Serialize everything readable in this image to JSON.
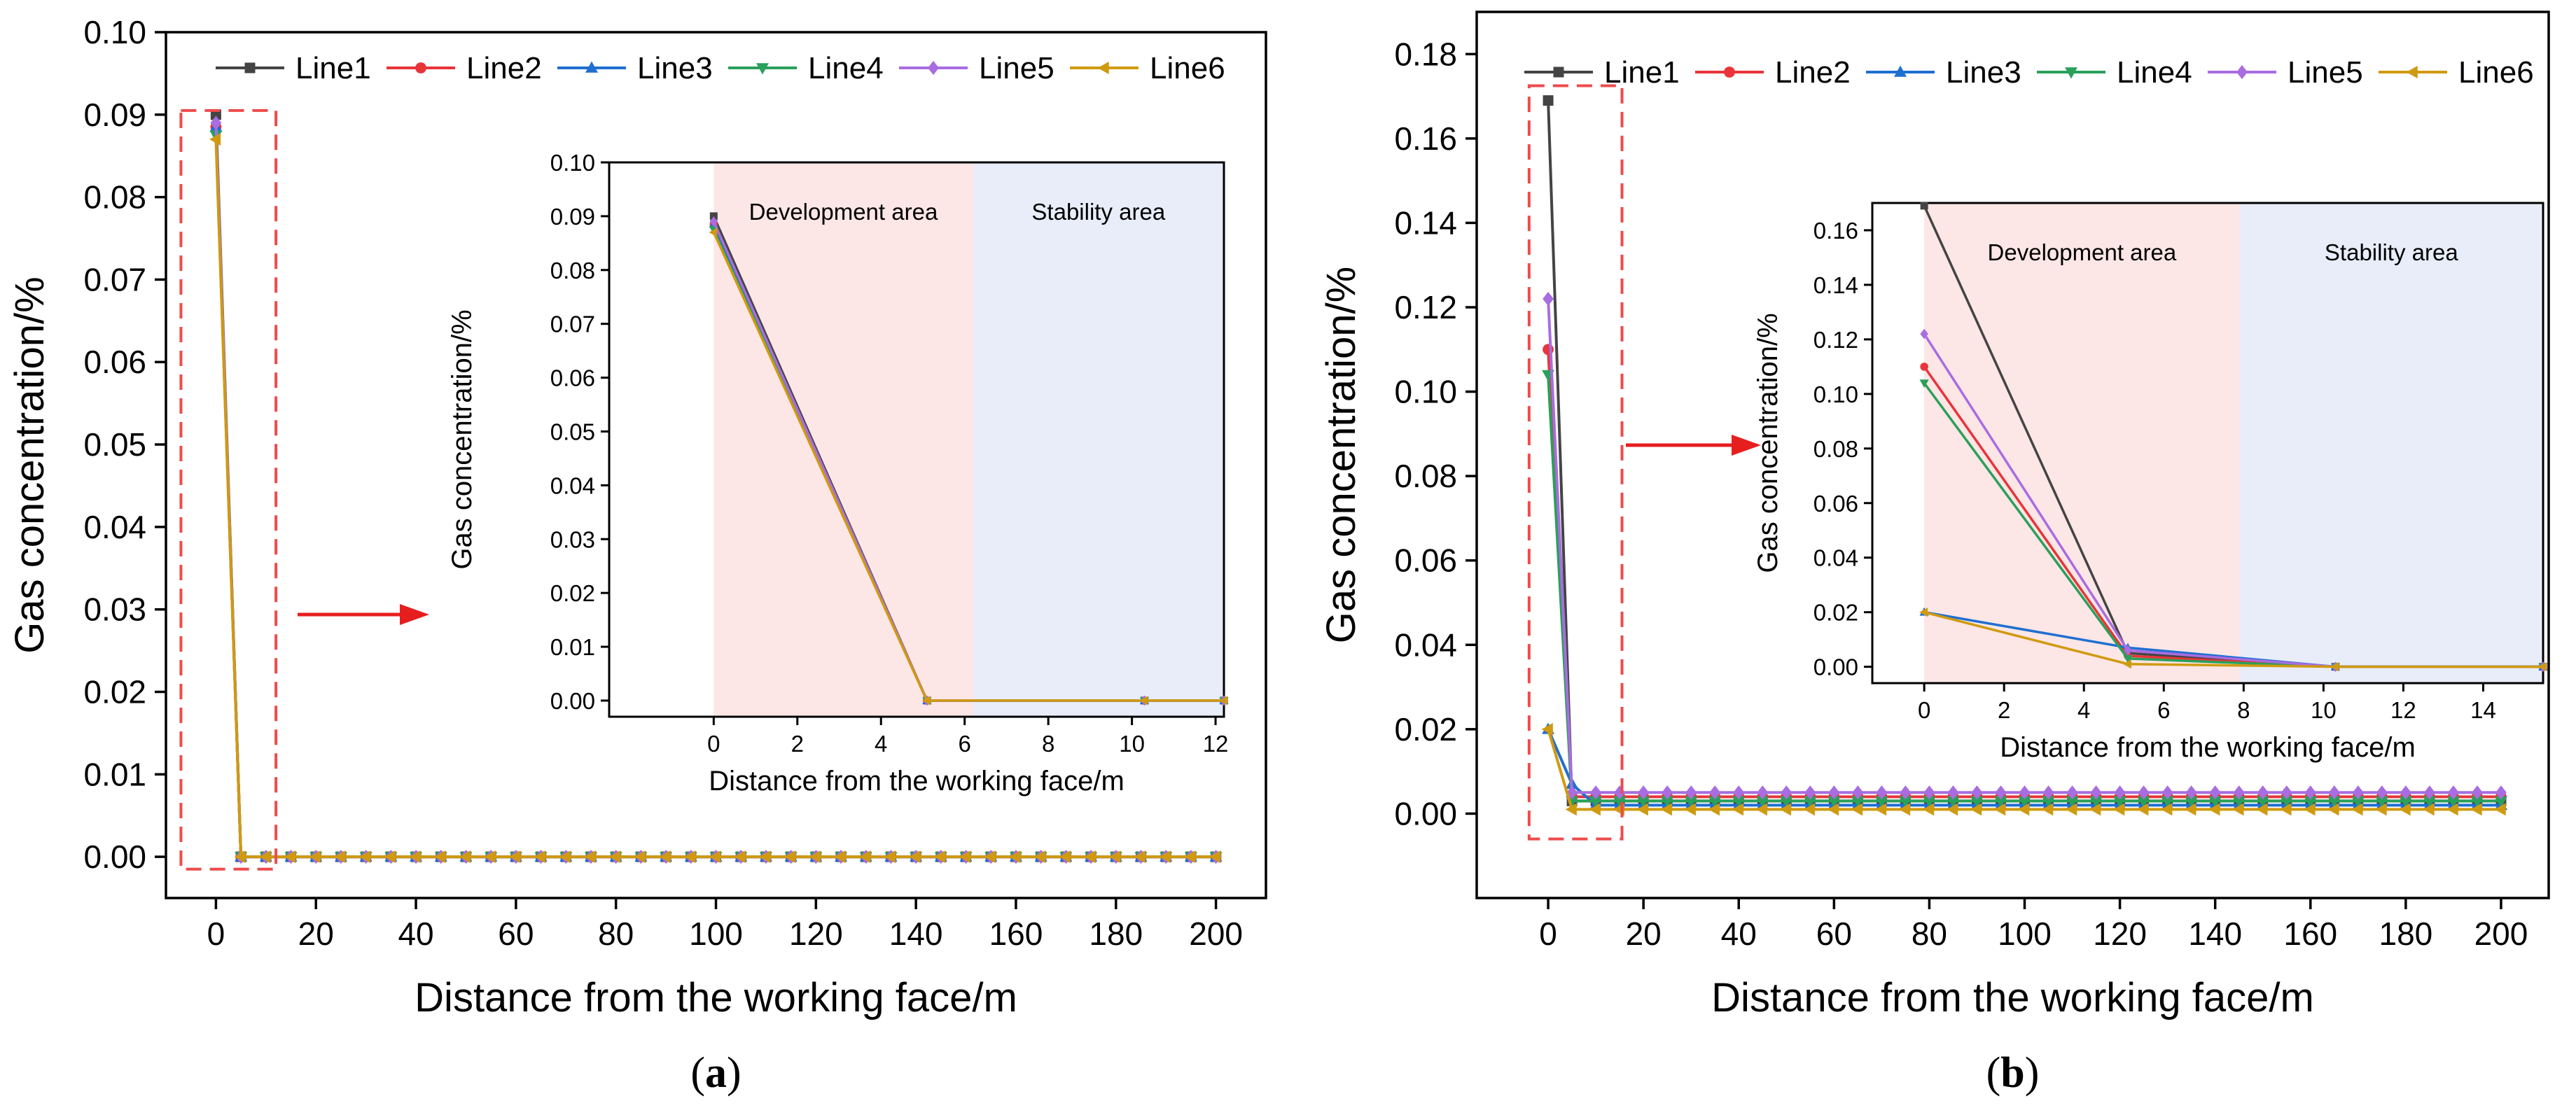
{
  "colors": {
    "Line1": "#444444",
    "Line2": "#e8343a",
    "Line3": "#1f6fd1",
    "Line4": "#2aa05a",
    "Line5": "#a86de0",
    "Line6": "#d09a10",
    "zoom_box": "#ee4b4b",
    "arrow": "#e61e1e",
    "development_area": "#fde6e6",
    "stability_area": "#e8edf9"
  },
  "markers": {
    "Line1": "square",
    "Line2": "circle",
    "Line3": "triangle-up",
    "Line4": "triangle-down",
    "Line5": "diamond",
    "Line6": "triangle-left"
  },
  "chart_data": [
    {
      "id": "a",
      "type": "line",
      "panel_label_open": "(",
      "panel_label": "a",
      "panel_label_close": ")",
      "xlabel": "Distance from the working face/m",
      "ylabel": "Gas concentration/%",
      "xlim": [
        -10,
        210
      ],
      "ylim": [
        -0.005,
        0.1
      ],
      "xticks": [
        0,
        20,
        40,
        60,
        80,
        100,
        120,
        140,
        160,
        180,
        200
      ],
      "yticks": [
        0.0,
        0.01,
        0.02,
        0.03,
        0.04,
        0.05,
        0.06,
        0.07,
        0.08,
        0.09,
        0.1
      ],
      "ytick_decimals": 2,
      "legend": "top",
      "series": [
        {
          "name": "Line1",
          "first": 0.09
        },
        {
          "name": "Line2",
          "first": 0.0885
        },
        {
          "name": "Line3",
          "first": 0.0885
        },
        {
          "name": "Line4",
          "first": 0.0875
        },
        {
          "name": "Line5",
          "first": 0.089
        },
        {
          "name": "Line6",
          "first": 0.087
        }
      ],
      "x_step": 5,
      "x_max": 200,
      "tail_values": {
        "Line1": [
          0.0
        ],
        "Line2": [
          0.0
        ],
        "Line3": [
          0.0
        ],
        "Line4": [
          0.0
        ],
        "Line5": [
          0.0
        ],
        "Line6": [
          0.0
        ]
      },
      "zoom_box": {
        "x": [
          -7,
          12
        ],
        "y": [
          -0.0015,
          0.0905
        ]
      },
      "inset": {
        "xlim": [
          -2.5,
          12.2
        ],
        "ylim": [
          -0.003,
          0.1
        ],
        "xticks": [
          0,
          2,
          4,
          6,
          8,
          10,
          12
        ],
        "yticks": [
          0.0,
          0.01,
          0.02,
          0.03,
          0.04,
          0.05,
          0.06,
          0.07,
          0.08,
          0.09,
          0.1
        ],
        "ytick_decimals": 2,
        "xlabel": "Distance from the working face/m",
        "ylabel": "Gas concentration/%",
        "regions": [
          {
            "label": "Development area",
            "from": 0,
            "to": 6.2,
            "color_key": "development_area"
          },
          {
            "label": "Stability area",
            "from": 6.2,
            "to": 12.2,
            "color_key": "stability_area"
          }
        ],
        "series": {
          "Line1": [
            [
              0,
              0.09
            ],
            [
              5.1,
              0.0
            ],
            [
              10.3,
              0.0
            ],
            [
              12.2,
              0.0
            ]
          ],
          "Line2": [
            [
              0,
              0.0885
            ],
            [
              5.1,
              0.0
            ],
            [
              10.3,
              0.0
            ],
            [
              12.2,
              0.0
            ]
          ],
          "Line3": [
            [
              0,
              0.0885
            ],
            [
              5.1,
              0.0
            ],
            [
              10.3,
              0.0
            ],
            [
              12.2,
              0.0
            ]
          ],
          "Line4": [
            [
              0,
              0.0875
            ],
            [
              5.1,
              0.0
            ],
            [
              10.3,
              0.0
            ],
            [
              12.2,
              0.0
            ]
          ],
          "Line5": [
            [
              0,
              0.089
            ],
            [
              5.1,
              0.0
            ],
            [
              10.3,
              0.0
            ],
            [
              12.2,
              0.0
            ]
          ],
          "Line6": [
            [
              0,
              0.087
            ],
            [
              5.1,
              0.0
            ],
            [
              10.3,
              0.0
            ],
            [
              12.2,
              0.0
            ]
          ]
        }
      }
    },
    {
      "id": "b",
      "type": "line",
      "panel_label_open": "(",
      "panel_label": "b",
      "panel_label_close": ")",
      "xlabel": "Distance from the working face/m",
      "ylabel": "Gas concentration/%",
      "xlim": [
        -15,
        210
      ],
      "ylim": [
        -0.02,
        0.19
      ],
      "xticks": [
        0,
        20,
        40,
        60,
        80,
        100,
        120,
        140,
        160,
        180,
        200
      ],
      "yticks": [
        0.0,
        0.02,
        0.04,
        0.06,
        0.08,
        0.1,
        0.12,
        0.14,
        0.16,
        0.18
      ],
      "ytick_decimals": 2,
      "legend": "top",
      "series": [
        {
          "name": "Line1",
          "first": 0.169
        },
        {
          "name": "Line2",
          "first": 0.11
        },
        {
          "name": "Line3",
          "first": 0.02
        },
        {
          "name": "Line4",
          "first": 0.104
        },
        {
          "name": "Line5",
          "first": 0.122
        },
        {
          "name": "Line6",
          "first": 0.02
        }
      ],
      "x_step": 5,
      "x_max": 200,
      "tail_values": {
        "Line1": [
          0.003
        ],
        "Line2": [
          0.004
        ],
        "Line3": [
          0.007,
          0.002
        ],
        "Line4": [
          0.003
        ],
        "Line5": [
          0.005
        ],
        "Line6": [
          0.001
        ]
      },
      "zoom_box": {
        "x": [
          -4,
          15.5
        ],
        "y": [
          -0.006,
          0.1725
        ]
      },
      "inset": {
        "xlim": [
          -1.3,
          15.5
        ],
        "ylim": [
          -0.006,
          0.17
        ],
        "xticks": [
          0,
          2,
          4,
          6,
          8,
          10,
          12,
          14
        ],
        "yticks": [
          0.0,
          0.02,
          0.04,
          0.06,
          0.08,
          0.1,
          0.12,
          0.14,
          0.16
        ],
        "ytick_decimals": 2,
        "xlabel": "Distance from the working face/m",
        "ylabel": "Gas concentration/%",
        "regions": [
          {
            "label": "Development area",
            "from": 0,
            "to": 7.9,
            "color_key": "development_area"
          },
          {
            "label": "Stability area",
            "from": 7.9,
            "to": 15.5,
            "color_key": "stability_area"
          }
        ],
        "series": {
          "Line1": [
            [
              0,
              0.169
            ],
            [
              5.1,
              0.005
            ],
            [
              10.3,
              0.0
            ],
            [
              15.5,
              0.0
            ]
          ],
          "Line2": [
            [
              0,
              0.11
            ],
            [
              5.1,
              0.004
            ],
            [
              10.3,
              0.0
            ],
            [
              15.5,
              0.0
            ]
          ],
          "Line3": [
            [
              0,
              0.02
            ],
            [
              5.1,
              0.007
            ],
            [
              10.3,
              0.0
            ],
            [
              15.5,
              0.0
            ]
          ],
          "Line4": [
            [
              0,
              0.104
            ],
            [
              5.1,
              0.003
            ],
            [
              10.3,
              0.0
            ],
            [
              15.5,
              0.0
            ]
          ],
          "Line5": [
            [
              0,
              0.122
            ],
            [
              5.1,
              0.006
            ],
            [
              10.3,
              0.0
            ],
            [
              15.5,
              0.0
            ]
          ],
          "Line6": [
            [
              0,
              0.02
            ],
            [
              5.1,
              0.001
            ],
            [
              10.3,
              0.0
            ],
            [
              15.5,
              0.0
            ]
          ]
        }
      }
    }
  ]
}
